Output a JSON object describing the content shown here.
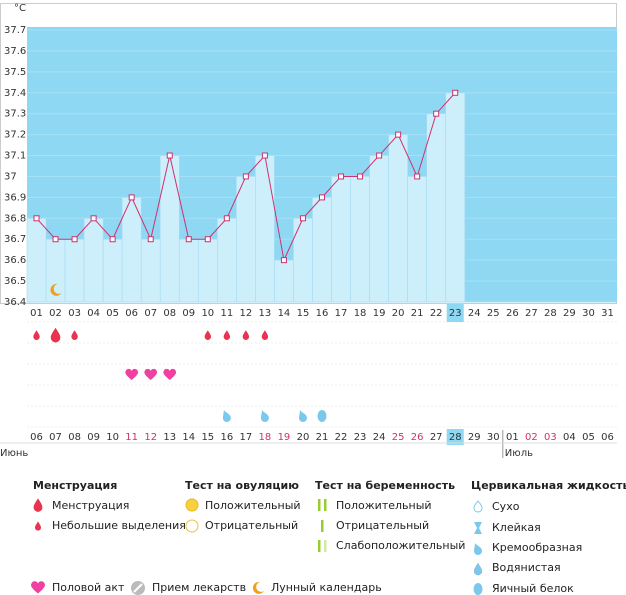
{
  "chart": {
    "unit": "°C",
    "ylim": [
      36.4,
      37.7
    ],
    "yticks": [
      36.4,
      36.5,
      36.6,
      36.7,
      36.8,
      36.9,
      37,
      37.1,
      37.2,
      37.3,
      37.4,
      37.5,
      37.6,
      37.7
    ],
    "days": [
      "01",
      "02",
      "03",
      "04",
      "05",
      "06",
      "07",
      "08",
      "09",
      "10",
      "11",
      "12",
      "13",
      "14",
      "15",
      "16",
      "17",
      "18",
      "19",
      "20",
      "21",
      "22",
      "23",
      "24",
      "25",
      "26",
      "27",
      "28",
      "29",
      "30",
      "31"
    ],
    "highlighted_day": 22,
    "temperatures": [
      36.8,
      36.7,
      36.7,
      36.8,
      36.7,
      36.9,
      36.7,
      37.1,
      36.7,
      36.7,
      36.8,
      37.0,
      37.1,
      36.6,
      36.8,
      36.9,
      37.0,
      37.0,
      37.1,
      37.2,
      37.0,
      37.3,
      37.4,
      null,
      null,
      null,
      null,
      null,
      null,
      null,
      null
    ],
    "moon_days": [
      2
    ]
  },
  "markers": {
    "menstruation": [
      {
        "day": 1,
        "size": "small"
      },
      {
        "day": 2,
        "size": "big"
      },
      {
        "day": 3,
        "size": "small"
      },
      {
        "day": 10,
        "size": "small"
      },
      {
        "day": 11,
        "size": "small"
      },
      {
        "day": 12,
        "size": "small"
      },
      {
        "day": 13,
        "size": "small"
      }
    ],
    "intercourse_days": [
      6,
      7,
      8
    ],
    "cervical": [
      {
        "day": 11,
        "type": "creamy"
      },
      {
        "day": 13,
        "type": "creamy"
      },
      {
        "day": 15,
        "type": "creamy"
      },
      {
        "day": 16,
        "type": "egg"
      }
    ]
  },
  "calendar": {
    "dates": [
      {
        "label": "06",
        "weekend": false
      },
      {
        "label": "07",
        "weekend": false
      },
      {
        "label": "08",
        "weekend": false
      },
      {
        "label": "09",
        "weekend": false
      },
      {
        "label": "10",
        "weekend": false
      },
      {
        "label": "11",
        "weekend": true
      },
      {
        "label": "12",
        "weekend": true
      },
      {
        "label": "13",
        "weekend": false
      },
      {
        "label": "14",
        "weekend": false
      },
      {
        "label": "15",
        "weekend": false
      },
      {
        "label": "16",
        "weekend": false
      },
      {
        "label": "17",
        "weekend": false
      },
      {
        "label": "18",
        "weekend": true
      },
      {
        "label": "19",
        "weekend": true
      },
      {
        "label": "20",
        "weekend": false
      },
      {
        "label": "21",
        "weekend": false
      },
      {
        "label": "22",
        "weekend": false
      },
      {
        "label": "23",
        "weekend": false
      },
      {
        "label": "24",
        "weekend": false
      },
      {
        "label": "25",
        "weekend": true
      },
      {
        "label": "26",
        "weekend": true
      },
      {
        "label": "27",
        "weekend": false
      },
      {
        "label": "28",
        "weekend": false
      },
      {
        "label": "29",
        "weekend": false
      },
      {
        "label": "30",
        "weekend": false
      },
      {
        "label": "01",
        "weekend": false
      },
      {
        "label": "02",
        "weekend": true
      },
      {
        "label": "03",
        "weekend": true
      },
      {
        "label": "04",
        "weekend": false
      },
      {
        "label": "05",
        "weekend": false
      },
      {
        "label": "06",
        "weekend": false
      }
    ],
    "highlighted_date": 22,
    "months": [
      {
        "name": "Июнь",
        "start": 0
      },
      {
        "name": "Июль",
        "start": 25
      }
    ]
  },
  "legend": {
    "menstruation": {
      "title": "Менструация",
      "items": [
        "Менструация",
        "Небольшие выделения"
      ]
    },
    "ovulation": {
      "title": "Тест на овуляцию",
      "items": [
        "Положительный",
        "Отрицательный"
      ]
    },
    "pregnancy": {
      "title": "Тест на беременность",
      "items": [
        "Положительный",
        "Отрицательный",
        "Слабоположительный"
      ]
    },
    "cervical": {
      "title": "Цервикальная жидкость",
      "items": [
        "Сухо",
        "Клейкая",
        "Кремообразная",
        "Водянистая",
        "Яичный белок"
      ]
    },
    "other": [
      "Половой акт",
      "Прием лекарств",
      "Лунный календарь"
    ]
  }
}
